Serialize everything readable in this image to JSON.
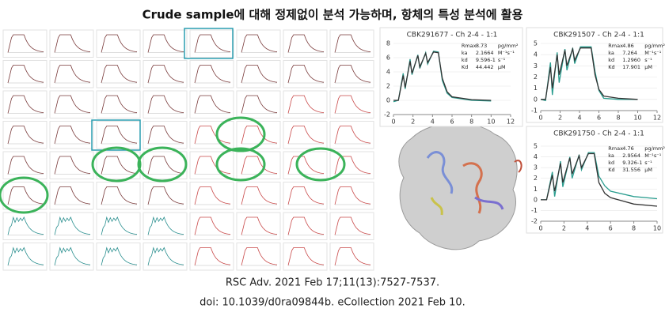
{
  "header": {
    "title": "Crude sample에 대해 정제없이 분석 가능하며, 항체의 특성 분석에 활용"
  },
  "citation": {
    "line1": "RSC Adv. 2021 Feb 17;11(13):7527-7537.",
    "line2": "doi: 10.1039/d0ra09844b. eCollection 2021 Feb 10."
  },
  "chart_data": [
    {
      "type": "line",
      "title": "CBK291677 - Ch 2-4 - 1:1",
      "x": [
        0,
        0.5,
        1,
        1.2,
        1.7,
        1.9,
        2.5,
        2.7,
        3.3,
        3.5,
        4.1,
        4.6,
        5,
        5.5,
        6,
        8,
        10
      ],
      "series": [
        {
          "name": "data",
          "color": "#2a9d8f",
          "values": [
            -0.2,
            0,
            3.8,
            1.6,
            5.8,
            3.6,
            6.4,
            4.5,
            6.7,
            5.1,
            6.9,
            6.8,
            2.8,
            1,
            0.4,
            0,
            -0.1
          ]
        },
        {
          "name": "fit",
          "color": "#333333",
          "values": [
            0,
            0,
            3.5,
            1.8,
            5.5,
            3.8,
            6.3,
            4.7,
            6.6,
            5.3,
            6.8,
            6.7,
            3.1,
            1.2,
            0.5,
            0.1,
            0
          ]
        }
      ],
      "xlim": [
        0,
        12
      ],
      "ylim": [
        -2,
        8
      ],
      "xticks": [
        0,
        2,
        4,
        6,
        8,
        10,
        12
      ],
      "yticks": [
        -2,
        0,
        2,
        4,
        6,
        8
      ],
      "params": [
        [
          "Rmax",
          "8.73",
          "pg/mm²"
        ],
        [
          "ka",
          "2.1664",
          "M⁻¹s⁻¹"
        ],
        [
          "kd",
          "9.596-1",
          "s⁻¹"
        ],
        [
          "Kd",
          "44.442",
          "μM"
        ]
      ]
    },
    {
      "type": "line",
      "title": "CBK291507 - Ch 2-4 - 1:1",
      "x": [
        0,
        0.5,
        1,
        1.2,
        1.7,
        1.9,
        2.5,
        2.7,
        3.3,
        3.5,
        4.1,
        5.2,
        5.6,
        6,
        6.5,
        8,
        10
      ],
      "series": [
        {
          "name": "data",
          "color": "#2a9d8f",
          "values": [
            0,
            -0.1,
            3.3,
            0.4,
            4.2,
            1.5,
            4.5,
            2.6,
            4.6,
            3.2,
            4.7,
            4.7,
            2.5,
            0.8,
            0.1,
            0,
            0
          ]
        },
        {
          "name": "fit",
          "color": "#333333",
          "values": [
            0,
            0,
            2.9,
            1,
            4,
            2.2,
            4.4,
            3,
            4.5,
            3.5,
            4.6,
            4.6,
            2.2,
            0.9,
            0.3,
            0.1,
            0
          ]
        }
      ],
      "xlim": [
        0,
        12
      ],
      "ylim": [
        -1,
        5
      ],
      "xticks": [
        0,
        2,
        4,
        6,
        8,
        10,
        12
      ],
      "yticks": [
        -1,
        0,
        1,
        2,
        3,
        4,
        5
      ],
      "params": [
        [
          "Rmax",
          "4.86",
          "pg/mm²"
        ],
        [
          "ka",
          "7.264",
          "M⁻¹s⁻¹"
        ],
        [
          "kd",
          "1.2960",
          "s⁻¹"
        ],
        [
          "Kd",
          "17.901",
          "μM"
        ]
      ]
    },
    {
      "type": "line",
      "title": "CBK291750 - Ch 2-4 - 1:1",
      "x": [
        0,
        0.5,
        1,
        1.2,
        1.7,
        1.9,
        2.5,
        2.7,
        3.3,
        3.5,
        4.1,
        4.6,
        5,
        5.5,
        6,
        8,
        10
      ],
      "series": [
        {
          "name": "data",
          "color": "#2a9d8f",
          "values": [
            0,
            0,
            2.6,
            0.3,
            3.6,
            1.2,
            4,
            2,
            4.2,
            2.8,
            4.4,
            4.4,
            2.2,
            1.3,
            0.8,
            0.3,
            0.1
          ]
        },
        {
          "name": "fit",
          "color": "#333333",
          "values": [
            0,
            0,
            2.3,
            0.8,
            3.4,
            1.6,
            3.9,
            2.4,
            4.1,
            3,
            4.3,
            4.3,
            1.6,
            0.6,
            0.2,
            -0.4,
            -0.6
          ]
        }
      ],
      "xlim": [
        0,
        10
      ],
      "ylim": [
        -2,
        5
      ],
      "xticks": [
        0,
        2,
        4,
        6,
        8,
        10
      ],
      "yticks": [
        -2,
        -1,
        0,
        1,
        2,
        3,
        4,
        5
      ],
      "params": [
        [
          "Rmax",
          "4.76",
          "pg/mm²"
        ],
        [
          "ka",
          "2.9564",
          "M⁻¹s⁻¹"
        ],
        [
          "kd",
          "9.326-1",
          "s⁻¹"
        ],
        [
          "Kd",
          "31.556",
          "μM"
        ]
      ]
    }
  ]
}
